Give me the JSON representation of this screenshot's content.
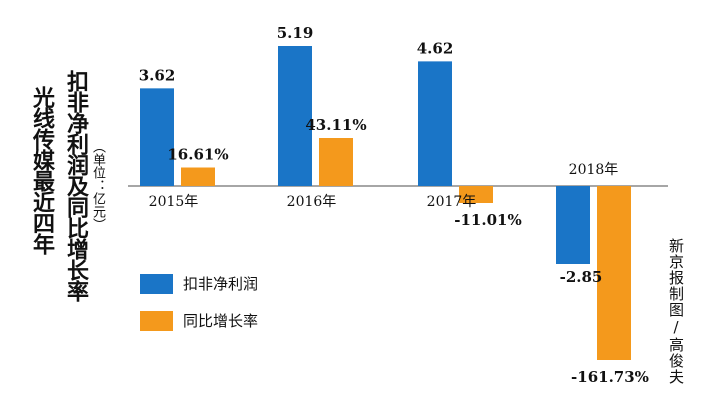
{
  "title": {
    "line1": "扣非净利润及同比增长率",
    "line2": "光线传媒最近四年"
  },
  "unit": "（单位：亿元）",
  "credit": "新京报制图/高俊夫",
  "colors": {
    "profit": "#1a75c7",
    "growth": "#f4991c",
    "axis": "#888888",
    "text": "#111111"
  },
  "chart_data": {
    "type": "bar",
    "categories": [
      "2015年",
      "2016年",
      "2017年",
      "2018年"
    ],
    "series": [
      {
        "name": "扣非净利润",
        "values": [
          3.62,
          5.19,
          4.62,
          -2.85
        ],
        "labels": [
          "3.62",
          "5.19",
          "4.62",
          "-2.85"
        ]
      },
      {
        "name": "同比增长率",
        "values": [
          16.61,
          43.11,
          -11.01,
          -161.73
        ],
        "labels": [
          "16.61%",
          "43.11%",
          "-11.01%",
          "-161.73%"
        ]
      }
    ],
    "legend": "bottom-left",
    "grid": false
  }
}
